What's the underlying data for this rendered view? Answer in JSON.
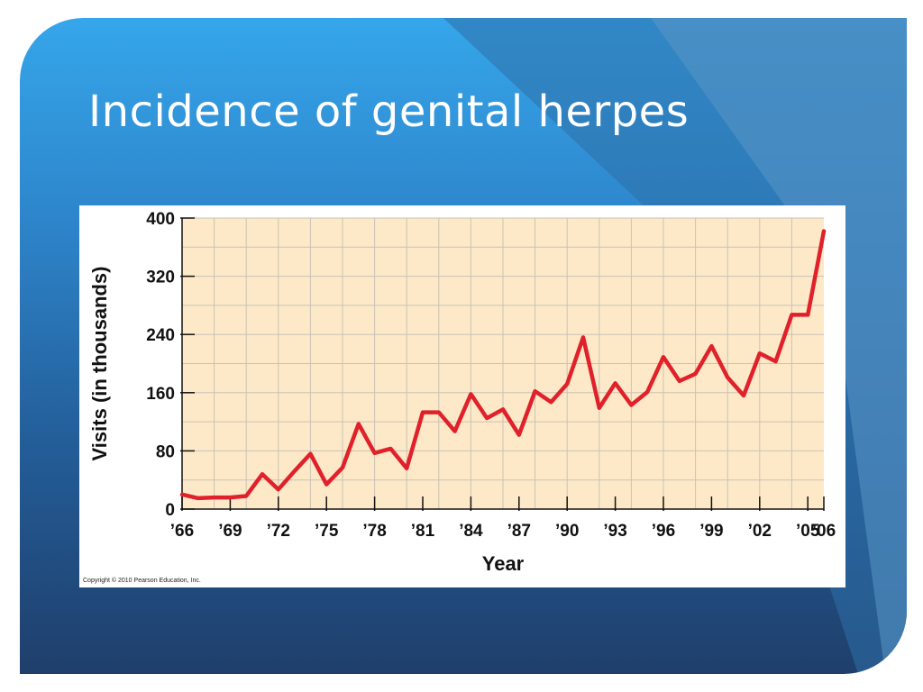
{
  "slide": {
    "title": "Incidence of genital herpes",
    "colors": {
      "top": "#36a6ea",
      "bottom": "#1f3f6b",
      "title": "#ffffff"
    }
  },
  "copyright": "Copyright © 2010 Pearson Education, Inc.",
  "chart_data": {
    "type": "line",
    "title": "",
    "xlabel": "Year",
    "ylabel": "Visits (in thousands)",
    "ylim": [
      0,
      400
    ],
    "yticks": [
      0,
      80,
      160,
      240,
      320,
      400
    ],
    "xticks": [
      {
        "year": 1966,
        "label": "’66"
      },
      {
        "year": 1969,
        "label": "’69"
      },
      {
        "year": 1972,
        "label": "’72"
      },
      {
        "year": 1975,
        "label": "’75"
      },
      {
        "year": 1978,
        "label": "’78"
      },
      {
        "year": 1981,
        "label": "’81"
      },
      {
        "year": 1984,
        "label": "’84"
      },
      {
        "year": 1987,
        "label": "’87"
      },
      {
        "year": 1990,
        "label": "’90"
      },
      {
        "year": 1993,
        "label": "’93"
      },
      {
        "year": 1996,
        "label": "’96"
      },
      {
        "year": 1999,
        "label": "’99"
      },
      {
        "year": 2002,
        "label": "’02"
      },
      {
        "year": 2005,
        "label": "’05"
      },
      {
        "year": 2006,
        "label": "’06"
      }
    ],
    "xlim": [
      1966,
      2006
    ],
    "grid": true,
    "colors": {
      "plot_background": "#fde9c8",
      "grid": "#c9c2b6",
      "line": "#e0212b"
    },
    "series": [
      {
        "x": [
          1966,
          1967,
          1968,
          1969,
          1970,
          1971,
          1972,
          1973,
          1974,
          1975,
          1976,
          1977,
          1978,
          1979,
          1980,
          1981,
          1982,
          1983,
          1984,
          1985,
          1986,
          1987,
          1988,
          1989,
          1990,
          1991,
          1992,
          1993,
          1994,
          1995,
          1996,
          1997,
          1998,
          1999,
          2000,
          2001,
          2002,
          2003,
          2004,
          2005,
          2006
        ],
        "values": [
          20,
          15,
          16,
          16,
          18,
          48,
          27,
          52,
          76,
          34,
          57,
          117,
          77,
          83,
          56,
          133,
          133,
          107,
          158,
          125,
          137,
          102,
          162,
          147,
          172,
          236,
          139,
          173,
          143,
          161,
          209,
          176,
          186,
          224,
          181,
          156,
          214,
          203,
          267,
          267,
          382
        ]
      }
    ]
  }
}
